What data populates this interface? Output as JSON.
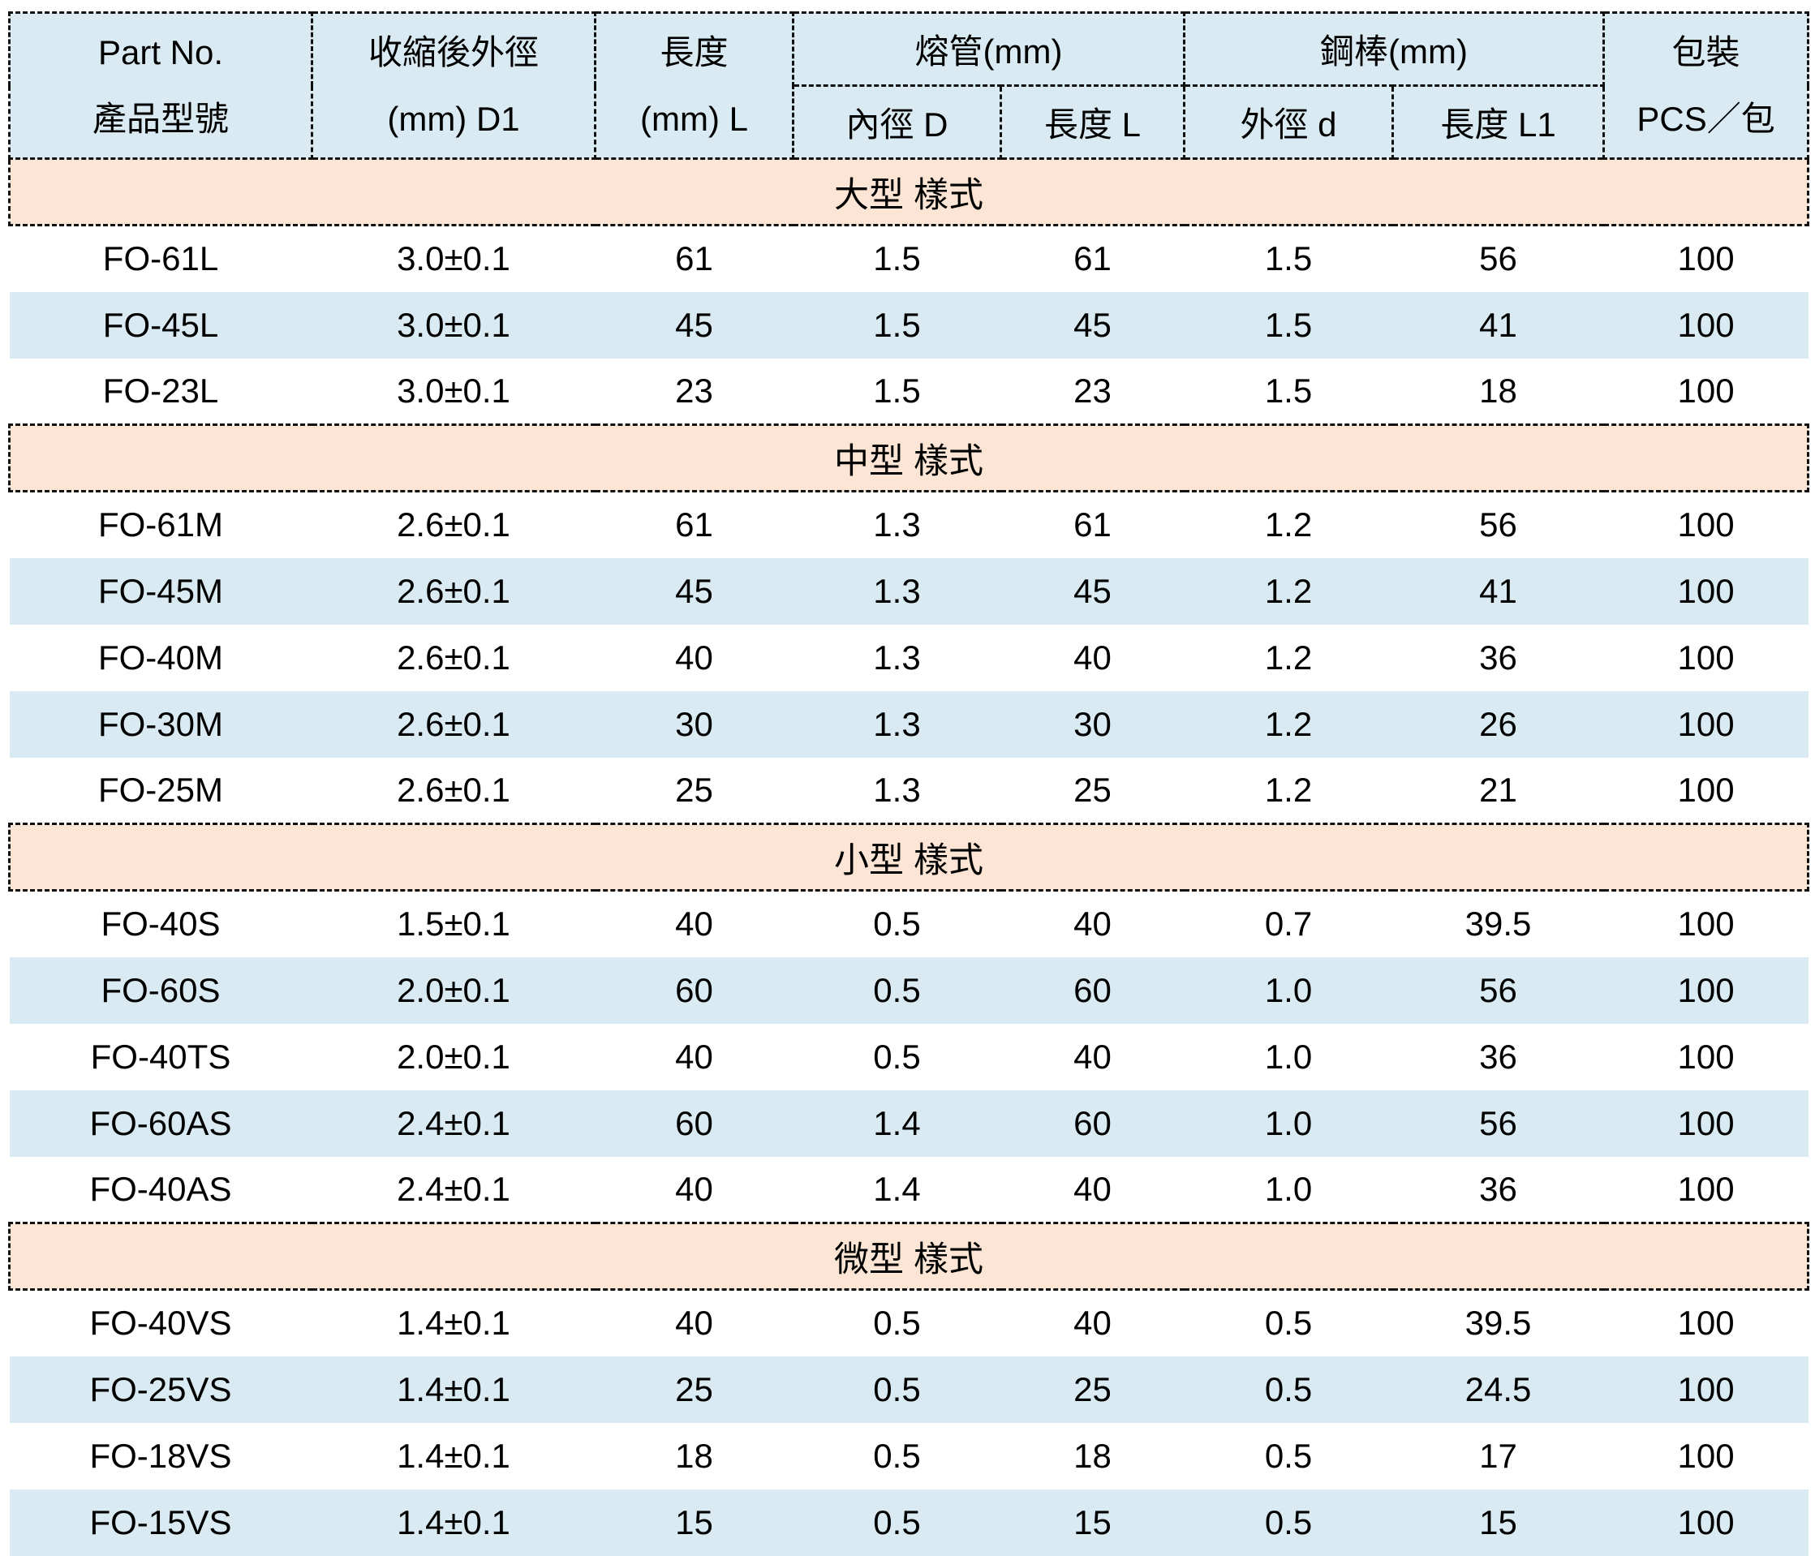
{
  "table": {
    "header": {
      "part_no_1": "Part No.",
      "part_no_2": "產品型號",
      "d1_1": "收縮後外徑",
      "d1_2": "(mm) D1",
      "len_1": "長度",
      "len_2": "(mm) L",
      "fuse_group": "熔管(mm)",
      "fuse_inner_dia": "內徑 D",
      "fuse_length": "長度 L",
      "rod_group": "鋼棒(mm)",
      "rod_outer_dia": "外徑 d",
      "rod_length": "長度 L1",
      "pack_1": "包裝",
      "pack_2": "PCS／包"
    },
    "sections": [
      {
        "title": "大型 樣式",
        "rows": [
          [
            "FO-61L",
            "3.0±0.1",
            "61",
            "1.5",
            "61",
            "1.5",
            "56",
            "100"
          ],
          [
            "FO-45L",
            "3.0±0.1",
            "45",
            "1.5",
            "45",
            "1.5",
            "41",
            "100"
          ],
          [
            "FO-23L",
            "3.0±0.1",
            "23",
            "1.5",
            "23",
            "1.5",
            "18",
            "100"
          ]
        ]
      },
      {
        "title": "中型 樣式",
        "rows": [
          [
            "FO-61M",
            "2.6±0.1",
            "61",
            "1.3",
            "61",
            "1.2",
            "56",
            "100"
          ],
          [
            "FO-45M",
            "2.6±0.1",
            "45",
            "1.3",
            "45",
            "1.2",
            "41",
            "100"
          ],
          [
            "FO-40M",
            "2.6±0.1",
            "40",
            "1.3",
            "40",
            "1.2",
            "36",
            "100"
          ],
          [
            "FO-30M",
            "2.6±0.1",
            "30",
            "1.3",
            "30",
            "1.2",
            "26",
            "100"
          ],
          [
            "FO-25M",
            "2.6±0.1",
            "25",
            "1.3",
            "25",
            "1.2",
            "21",
            "100"
          ]
        ]
      },
      {
        "title": "小型 樣式",
        "rows": [
          [
            "FO-40S",
            "1.5±0.1",
            "40",
            "0.5",
            "40",
            "0.7",
            "39.5",
            "100"
          ],
          [
            "FO-60S",
            "2.0±0.1",
            "60",
            "0.5",
            "60",
            "1.0",
            "56",
            "100"
          ],
          [
            "FO-40TS",
            "2.0±0.1",
            "40",
            "0.5",
            "40",
            "1.0",
            "36",
            "100"
          ],
          [
            "FO-60AS",
            "2.4±0.1",
            "60",
            "1.4",
            "60",
            "1.0",
            "56",
            "100"
          ],
          [
            "FO-40AS",
            "2.4±0.1",
            "40",
            "1.4",
            "40",
            "1.0",
            "36",
            "100"
          ]
        ]
      },
      {
        "title": "微型 樣式",
        "rows": [
          [
            "FO-40VS",
            "1.4±0.1",
            "40",
            "0.5",
            "40",
            "0.5",
            "39.5",
            "100"
          ],
          [
            "FO-25VS",
            "1.4±0.1",
            "25",
            "0.5",
            "25",
            "0.5",
            "24.5",
            "100"
          ],
          [
            "FO-18VS",
            "1.4±0.1",
            "18",
            "0.5",
            "18",
            "0.5",
            "17",
            "100"
          ],
          [
            "FO-15VS",
            "1.4±0.1",
            "15",
            "0.5",
            "15",
            "0.5",
            "15",
            "100"
          ]
        ]
      }
    ]
  },
  "colors": {
    "header_bg": "#d9eaf2",
    "row_alt_bg": "#d9eaf2",
    "section_bg": "#fce5d4",
    "border": "#111111",
    "text": "#000000"
  }
}
